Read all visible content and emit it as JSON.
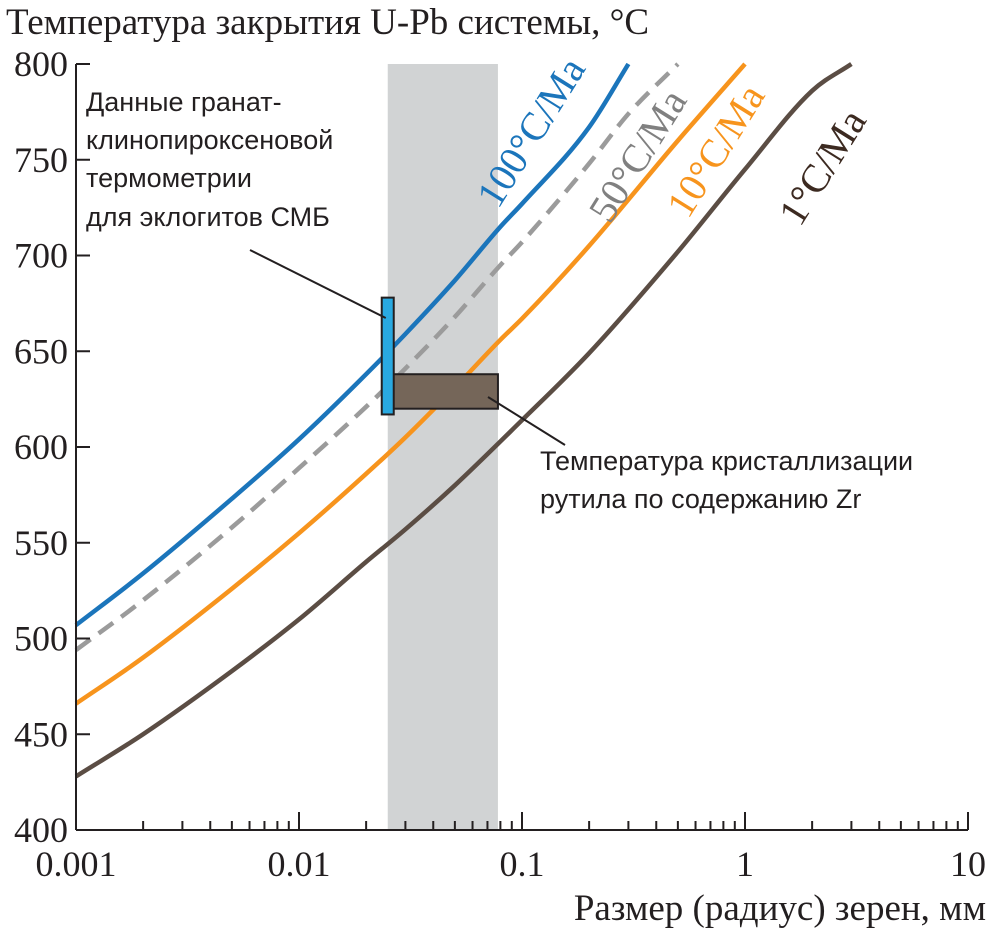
{
  "chart_data": {
    "type": "line",
    "title": "Температура закрытия U-Pb системы, °C",
    "xlabel": "Размер  (радиус) зерен, мм",
    "ylabel": "",
    "xscale": "log",
    "xlim": [
      0.001,
      10
    ],
    "ylim": [
      400,
      800
    ],
    "x_ticks": [
      {
        "value": 0.001,
        "label": "0.001"
      },
      {
        "value": 0.01,
        "label": "0.01"
      },
      {
        "value": 0.1,
        "label": "0.1"
      },
      {
        "value": 1,
        "label": "1"
      },
      {
        "value": 10,
        "label": "10"
      }
    ],
    "y_ticks": [
      {
        "value": 400,
        "label": "400"
      },
      {
        "value": 450,
        "label": "450"
      },
      {
        "value": 500,
        "label": "500"
      },
      {
        "value": 550,
        "label": "550"
      },
      {
        "value": 600,
        "label": "600"
      },
      {
        "value": 650,
        "label": "650"
      },
      {
        "value": 700,
        "label": "700"
      },
      {
        "value": 750,
        "label": "750"
      },
      {
        "value": 800,
        "label": "800"
      }
    ],
    "grid": false,
    "series": [
      {
        "name": "100°C/Ma",
        "color": "#1b75bb",
        "dash": false,
        "x": [
          0.001,
          0.002,
          0.005,
          0.01,
          0.02,
          0.03,
          0.05,
          0.08,
          0.1,
          0.2,
          0.3
        ],
        "y": [
          507,
          534,
          573,
          604,
          638,
          659,
          687,
          715,
          727,
          767,
          800
        ]
      },
      {
        "name": "50°C/Ma",
        "color": "#9b9b9b",
        "dash": true,
        "x": [
          0.001,
          0.002,
          0.005,
          0.01,
          0.02,
          0.03,
          0.05,
          0.08,
          0.1,
          0.2,
          0.3,
          0.5
        ],
        "y": [
          494,
          520,
          558,
          589,
          621,
          641,
          668,
          695,
          707,
          748,
          774,
          800
        ]
      },
      {
        "name": "10°C/Ma",
        "color": "#f7941d",
        "dash": false,
        "x": [
          0.001,
          0.002,
          0.005,
          0.01,
          0.02,
          0.03,
          0.05,
          0.08,
          0.1,
          0.2,
          0.5,
          1
        ],
        "y": [
          466,
          490,
          526,
          555,
          586,
          605,
          631,
          656,
          667,
          705,
          760,
          800
        ]
      },
      {
        "name": "1°C/Ma",
        "color": "#5b4d44",
        "dash": false,
        "x": [
          0.001,
          0.002,
          0.005,
          0.01,
          0.02,
          0.03,
          0.05,
          0.1,
          0.2,
          0.5,
          1,
          2,
          3
        ],
        "y": [
          428,
          450,
          483,
          510,
          540,
          557,
          580,
          614,
          649,
          702,
          745,
          786,
          800
        ]
      }
    ],
    "shaded_band": {
      "x": [
        0.025,
        0.078
      ],
      "color": "#d1d3d4"
    },
    "rutile_box": {
      "x": [
        0.026,
        0.078
      ],
      "y": [
        620,
        638
      ],
      "color": "#756659",
      "label": "Температура кристаллизации рутила по содержанию Zr"
    },
    "garnet_bar": {
      "x": 0.025,
      "y": [
        617,
        678
      ],
      "color": "#29a9e1",
      "label": "Данные гранат-клинопироксеновой термометрии для эклогитов СМБ"
    }
  },
  "labels": {
    "title": "Температура закрытия U-Pb системы, °C",
    "xlabel": "Размер  (радиус) зерен, мм",
    "garnet_annotation": [
      "Данные гранат-",
      "клинопироксеновой",
      "термометрии",
      "для эклогитов СМБ"
    ],
    "rutile_annotation": [
      "Температура кристаллизации",
      "рутила по содержанию Zr"
    ],
    "curve_100": "100°C/Ma",
    "curve_50": "50°C/Ma",
    "curve_10": "10°C/Ma",
    "curve_1": "1°C/Ma"
  }
}
